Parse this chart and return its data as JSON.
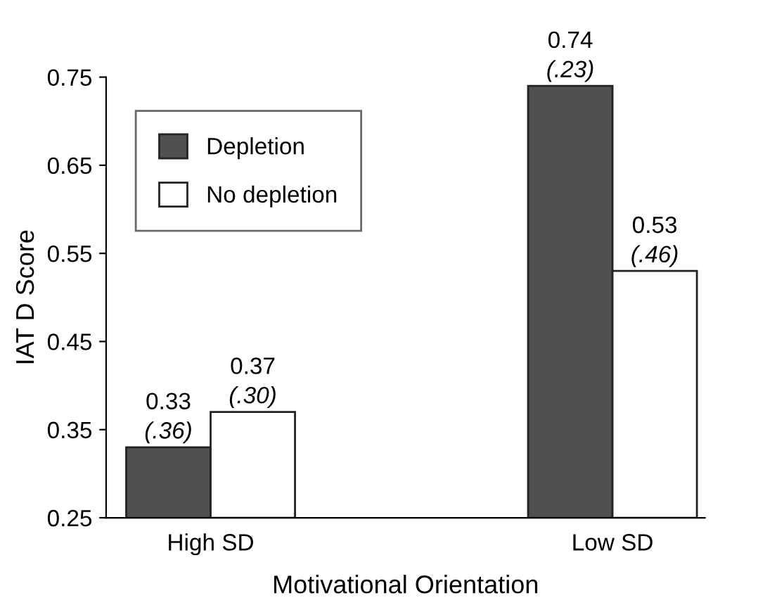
{
  "chart_data": {
    "type": "bar",
    "xlabel": "Motivational Orientation",
    "ylabel": "IAT D Score",
    "categories": [
      "High SD",
      "Low SD"
    ],
    "series": [
      {
        "name": "Depletion",
        "color": "#505050",
        "values": [
          0.33,
          0.74
        ],
        "value_labels": [
          "0.33\n(.36)",
          "0.74\n(.23)"
        ]
      },
      {
        "name": "No depletion",
        "color": "#ffffff",
        "values": [
          0.37,
          0.53
        ],
        "value_labels": [
          "0.37\n(.30)",
          "0.53\n(.46)"
        ]
      }
    ],
    "ylim": [
      0.25,
      0.75
    ],
    "yticks": [
      0.25,
      0.35,
      0.45,
      0.55,
      0.65,
      0.75
    ],
    "grid": false,
    "legend": "top left"
  }
}
